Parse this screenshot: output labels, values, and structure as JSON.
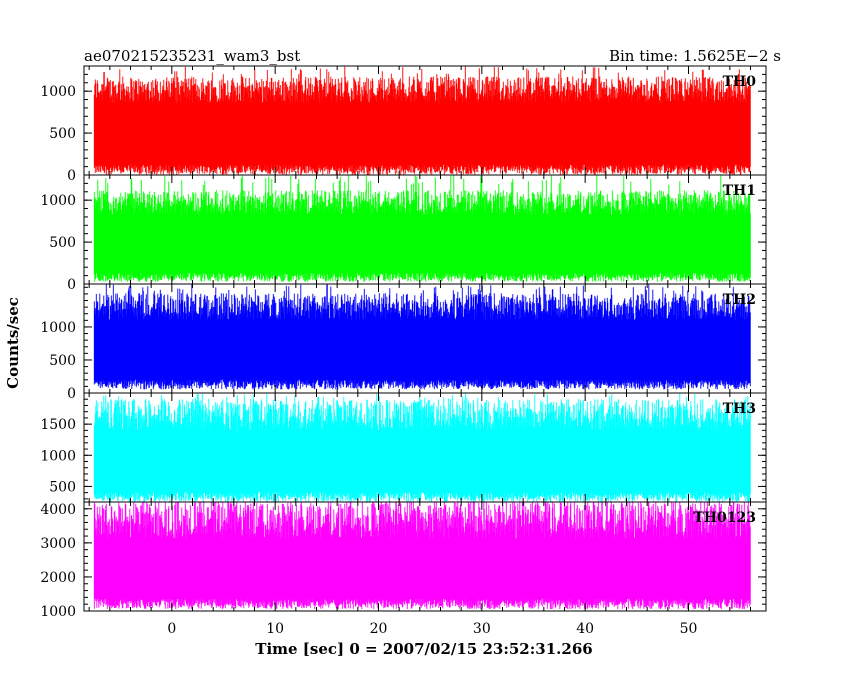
{
  "chart_data": {
    "type": "line",
    "title": "ae070215235231_wam3_bst",
    "bin_time_label": "Bin time: 1.5625E−2 s",
    "xlabel": "Time [sec] 0 = 2007/02/15 23:52:31.266",
    "ylabel": "Counts/sec",
    "xlim": [
      -8.5,
      57.5
    ],
    "x_data_range": [
      -7.5,
      56
    ],
    "x_ticks": [
      0,
      10,
      20,
      30,
      40,
      50
    ],
    "x_tick_labels": [
      "0",
      "10",
      "20",
      "30",
      "40",
      "50"
    ],
    "grid": false,
    "legend": "none",
    "series": [
      {
        "name": "TH0",
        "color": "#ff0000",
        "ylim": [
          0,
          1300
        ],
        "y_ticks": [
          0,
          500,
          1000
        ],
        "y_tick_labels": [
          "0",
          "500",
          "1000"
        ],
        "typical_low": 40,
        "typical_high": 1050,
        "peak": 1300
      },
      {
        "name": "TH1",
        "color": "#00ff00",
        "ylim": [
          0,
          1300
        ],
        "y_ticks": [
          0,
          500,
          1000
        ],
        "y_tick_labels": [
          "0",
          "500",
          "1000"
        ],
        "typical_low": 60,
        "typical_high": 1000,
        "peak": 1300
      },
      {
        "name": "TH2",
        "color": "#0000ff",
        "ylim": [
          0,
          1650
        ],
        "y_ticks": [
          0,
          500,
          1000
        ],
        "y_tick_labels": [
          "0",
          "500",
          "1000"
        ],
        "typical_low": 100,
        "typical_high": 1350,
        "peak": 1650
      },
      {
        "name": "TH3",
        "color": "#00ffff",
        "ylim": [
          250,
          2000
        ],
        "y_ticks": [
          500,
          1000,
          1500
        ],
        "y_tick_labels": [
          "500",
          "1000",
          "1500"
        ],
        "typical_low": 300,
        "typical_high": 1700,
        "peak": 2000
      },
      {
        "name": "TH0123",
        "color": "#ff00ff",
        "ylim": [
          1000,
          4200
        ],
        "y_ticks": [
          1000,
          2000,
          3000,
          4000
        ],
        "y_tick_labels": [
          "1000",
          "2000",
          "3000",
          "4000"
        ],
        "typical_low": 1150,
        "typical_high": 3800,
        "peak": 4200
      }
    ]
  }
}
